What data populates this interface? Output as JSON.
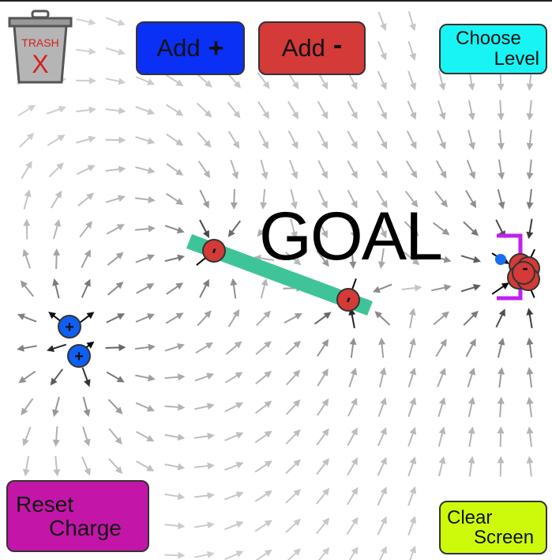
{
  "toolbar": {
    "trash": {
      "label": "TRASH",
      "mark": "X"
    },
    "add_positive": {
      "label": "Add",
      "sign": "+"
    },
    "add_negative": {
      "label": "Add",
      "sign": "-"
    },
    "choose_level": {
      "line1": "Choose",
      "line2": "Level"
    },
    "reset_charge": {
      "line1": "Reset",
      "line2": "Charge"
    },
    "clear_screen": {
      "line1": "Clear",
      "line2": "Screen"
    }
  },
  "goal": {
    "label": "GOAL"
  },
  "charges": [
    {
      "sign": "+",
      "symbol": "+",
      "color": "#0f5ff2"
    },
    {
      "sign": "+",
      "symbol": "+",
      "color": "#0f5ff2"
    },
    {
      "sign": "-",
      "symbol": "-",
      "color": "#d43a37"
    },
    {
      "sign": "-",
      "symbol": "-",
      "color": "#d43a37"
    },
    {
      "sign": "-",
      "symbol": "-",
      "color": "#d43a37"
    }
  ],
  "colors": {
    "positive": "#0f5ff2",
    "negative": "#d43a37",
    "barrier": "#3fc49a",
    "goal_bracket": "#c020f0",
    "test_charge": "#1a6cf2"
  }
}
